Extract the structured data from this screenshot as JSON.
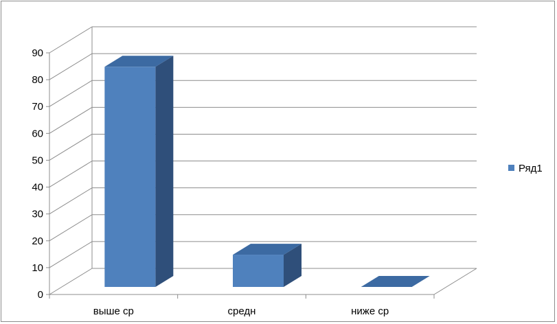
{
  "chart_data": {
    "type": "bar",
    "categories": [
      "выше ср",
      "средн",
      "ниже ср"
    ],
    "series": [
      {
        "name": "Ряд1",
        "values": [
          82,
          12,
          0
        ]
      }
    ],
    "ylim": [
      0,
      90
    ],
    "yticks": [
      "0",
      "10",
      "20",
      "30",
      "40",
      "50",
      "60",
      "70",
      "80",
      "90"
    ],
    "grid": true,
    "legend_position": "right",
    "colors": {
      "front": "#4f81bd",
      "top": "#3c6aa2",
      "side": "#2f4f7a",
      "grid": "#8c8c8c"
    }
  }
}
